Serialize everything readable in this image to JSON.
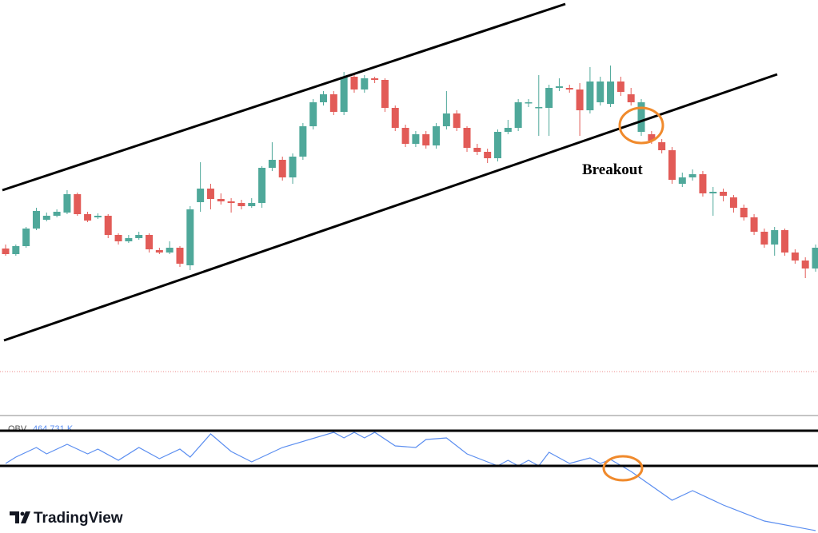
{
  "chart_data": {
    "type": "candlestick",
    "annotation": "Breakout",
    "up_color": "#4fa89a",
    "down_color": "#e25b57",
    "ylim": [
      0,
      470
    ],
    "xlim": [
      0,
      79
    ],
    "open": [
      159,
      152,
      162,
      184,
      195,
      200,
      204,
      227,
      202,
      198,
      200,
      176,
      168,
      172,
      176,
      157,
      154,
      160,
      138,
      217,
      234,
      221,
      218,
      216,
      212,
      216,
      260,
      270,
      248,
      274,
      312,
      342,
      352,
      330,
      374,
      358,
      372,
      370,
      335,
      310,
      290,
      302,
      288,
      312,
      328,
      310,
      285,
      280,
      272,
      305,
      310,
      342,
      335,
      335,
      360,
      360,
      358,
      332,
      342,
      340,
      368,
      352,
      305,
      302,
      292,
      282,
      240,
      248,
      252,
      228,
      230,
      223,
      210,
      198,
      180,
      164,
      182,
      154,
      144,
      134
    ],
    "close": [
      152,
      162,
      184,
      206,
      200,
      205,
      227,
      202,
      194,
      200,
      176,
      168,
      172,
      176,
      158,
      154,
      160,
      140,
      208,
      234,
      221,
      218,
      216,
      212,
      216,
      260,
      270,
      248,
      274,
      312,
      342,
      352,
      330,
      374,
      358,
      372,
      370,
      335,
      310,
      290,
      302,
      288,
      312,
      328,
      310,
      285,
      280,
      272,
      305,
      310,
      342,
      342,
      336,
      360,
      362,
      358,
      332,
      368,
      368,
      368,
      355,
      342,
      342,
      294,
      282,
      245,
      248,
      252,
      228,
      230,
      225,
      210,
      198,
      180,
      164,
      182,
      154,
      144,
      134,
      160
    ],
    "high": [
      164,
      164,
      186,
      210,
      204,
      208,
      232,
      229,
      205,
      203,
      202,
      178,
      176,
      180,
      178,
      160,
      168,
      162,
      212,
      267,
      240,
      228,
      222,
      220,
      222,
      262,
      292,
      274,
      278,
      316,
      346,
      356,
      356,
      380,
      378,
      376,
      374,
      372,
      338,
      314,
      306,
      306,
      316,
      356,
      332,
      312,
      290,
      284,
      308,
      320,
      346,
      346,
      376,
      364,
      372,
      364,
      366,
      386,
      374,
      388,
      374,
      360,
      346,
      306,
      296,
      286,
      254,
      258,
      256,
      236,
      234,
      226,
      214,
      202,
      184,
      186,
      184,
      158,
      148,
      164
    ],
    "low": [
      150,
      150,
      160,
      182,
      193,
      198,
      202,
      200,
      192,
      196,
      172,
      164,
      166,
      170,
      154,
      152,
      152,
      136,
      132,
      205,
      208,
      214,
      204,
      208,
      210,
      210,
      256,
      244,
      240,
      270,
      308,
      338,
      326,
      326,
      354,
      354,
      366,
      330,
      306,
      286,
      286,
      284,
      284,
      308,
      306,
      280,
      276,
      266,
      268,
      302,
      306,
      336,
      300,
      300,
      356,
      354,
      300,
      328,
      338,
      336,
      350,
      338,
      300,
      290,
      278,
      240,
      236,
      244,
      224,
      200,
      218,
      204,
      194,
      176,
      160,
      150,
      150,
      140,
      122,
      130
    ],
    "obv": {
      "name": "OBV",
      "value_label": "464.731 K",
      "color": "#5b8ef0",
      "ylim": [
        0,
        150
      ],
      "x": [
        0,
        1,
        3,
        4,
        6,
        8,
        9,
        11,
        13,
        15,
        17,
        18,
        20,
        22,
        24,
        27,
        32,
        33,
        34,
        35,
        36,
        38,
        40,
        41,
        43,
        45,
        48,
        49,
        50,
        51,
        52,
        53,
        55,
        57,
        58,
        59,
        61,
        65,
        67,
        70,
        74,
        79
      ],
      "values": [
        90,
        98,
        110,
        102,
        114,
        102,
        108,
        94,
        110,
        96,
        108,
        98,
        127,
        105,
        92,
        110,
        129,
        122,
        129,
        122,
        129,
        112,
        110,
        120,
        122,
        102,
        87,
        94,
        87,
        94,
        87,
        104,
        90,
        97,
        90,
        95,
        80,
        44,
        56,
        38,
        18,
        6
      ]
    },
    "brand": "TradingView"
  }
}
